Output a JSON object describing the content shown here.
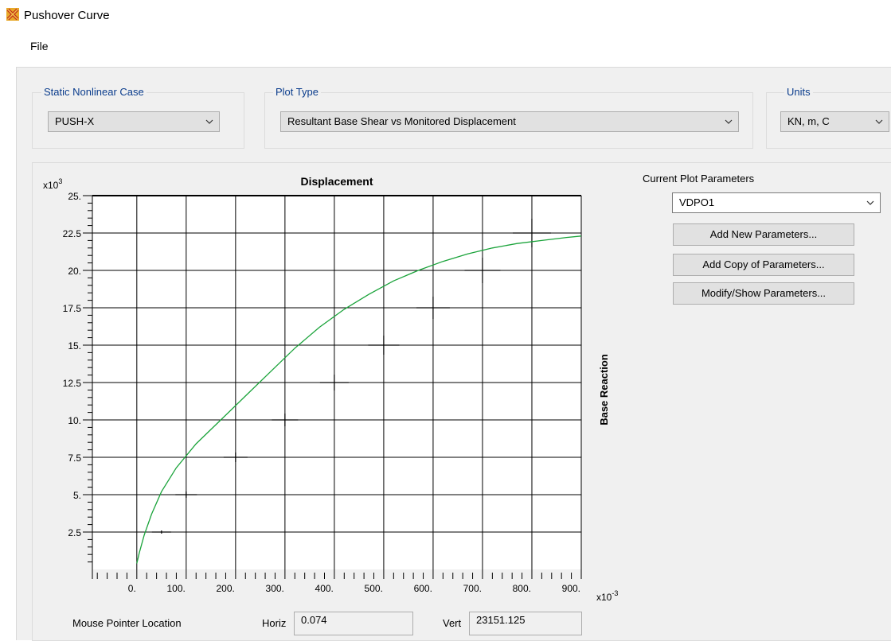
{
  "window": {
    "title": "Pushover Curve"
  },
  "menu": {
    "file": "File"
  },
  "static_case": {
    "label": "Static Nonlinear Case",
    "value": "PUSH-X"
  },
  "plot_type": {
    "label": "Plot Type",
    "value": "Resultant Base Shear vs Monitored Displacement"
  },
  "units": {
    "label": "Units",
    "value": "KN, m, C"
  },
  "params": {
    "label": "Current Plot Parameters",
    "selected": "VDPO1",
    "add_new": "Add New Parameters...",
    "add_copy": "Add Copy of Parameters...",
    "modify": "Modify/Show Parameters..."
  },
  "status": {
    "mouse_label": "Mouse Pointer Location",
    "horiz_label": "Horiz",
    "horiz_value": "0.074",
    "vert_label": "Vert",
    "vert_value": "23151.125"
  },
  "colors": {
    "curve": "#1aa33a",
    "legend_text": "#0a3c8c"
  },
  "chart_data": {
    "type": "line",
    "title": "Displacement",
    "xlabel": "",
    "ylabel": "Base Reaction",
    "x_multiplier": "x10^-3",
    "y_multiplier": "x10^3",
    "xlim": [
      -90,
      900
    ],
    "ylim": [
      0,
      25000
    ],
    "grid": true,
    "x_ticks": [
      "0.",
      "100.",
      "200.",
      "300.",
      "400.",
      "500.",
      "600.",
      "700.",
      "800.",
      "900."
    ],
    "y_ticks": [
      "2.5",
      "5.",
      "7.5",
      "10.",
      "12.5",
      "15.",
      "17.5",
      "20.",
      "22.5",
      "25."
    ],
    "series": [
      {
        "color": "#1aa33a",
        "x": [
          0,
          5,
          15,
          30,
          50,
          80,
          120,
          170,
          220,
          270,
          320,
          370,
          420,
          470,
          520,
          570,
          620,
          670,
          720,
          770,
          820,
          870,
          900
        ],
        "y": [
          400,
          1100,
          2300,
          3700,
          5200,
          6800,
          8400,
          10000,
          11600,
          13200,
          14800,
          16200,
          17400,
          18400,
          19300,
          20000,
          20600,
          21100,
          21500,
          21800,
          22000,
          22200,
          22300
        ]
      }
    ],
    "markers": [
      {
        "x": 50,
        "y": 2500
      },
      {
        "x": 100,
        "y": 5000
      },
      {
        "x": 200,
        "y": 7500
      },
      {
        "x": 300,
        "y": 10000
      },
      {
        "x": 400,
        "y": 12500
      },
      {
        "x": 500,
        "y": 15000
      },
      {
        "x": 600,
        "y": 17500
      },
      {
        "x": 700,
        "y": 20000
      },
      {
        "x": 800,
        "y": 22500
      }
    ]
  }
}
